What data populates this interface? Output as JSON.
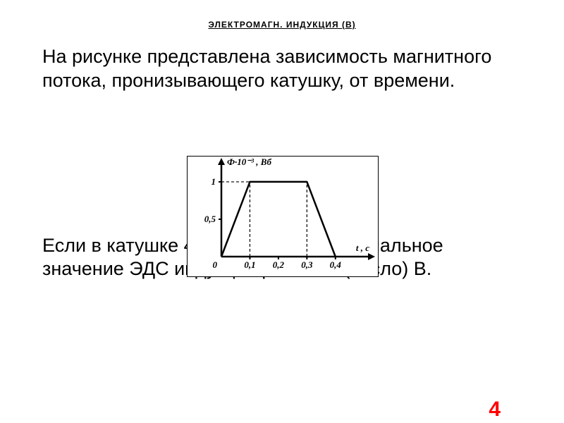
{
  "title": "ЭЛЕКТРОМАГН.   ИНДУКЦИЯ (В)",
  "paragraph1": "На рисунке представлена зависимость магнитного потока, пронизывающего катушку, от времени.",
  "paragraph2": "Если в катушке 400 витков, то максимальное значение ЭДС индукции равно … (число) В.",
  "answer": "4",
  "chart": {
    "type": "line",
    "y_axis_label": "Ф·10⁻³ , Вб",
    "x_axis_label": "t , с",
    "y_ticks": [
      {
        "value": 0.5,
        "label": "0,5"
      },
      {
        "value": 1.0,
        "label": "1"
      }
    ],
    "x_ticks": [
      {
        "value": 0.0,
        "label": "0"
      },
      {
        "value": 0.1,
        "label": "0,1"
      },
      {
        "value": 0.2,
        "label": "0,2"
      },
      {
        "value": 0.3,
        "label": "0,3"
      },
      {
        "value": 0.4,
        "label": "0,4"
      }
    ],
    "points": [
      {
        "x": 0.0,
        "y": 0.0
      },
      {
        "x": 0.1,
        "y": 1.0
      },
      {
        "x": 0.3,
        "y": 1.0
      },
      {
        "x": 0.4,
        "y": 0.0
      }
    ],
    "dashed_drops_x": [
      0.1,
      0.3
    ],
    "value_dashed_y": 1.0,
    "xlim": [
      0.0,
      0.45
    ],
    "ylim": [
      0.0,
      1.15
    ],
    "line_color": "#000000",
    "line_width": 2.5,
    "axis_color": "#000000",
    "axis_width": 2.5,
    "background_color": "#ffffff",
    "tick_fontsize": 13,
    "axis_label_fontsize": 13,
    "font_family": "Times New Roman, serif",
    "font_weight": "bold",
    "font_style": "italic"
  }
}
